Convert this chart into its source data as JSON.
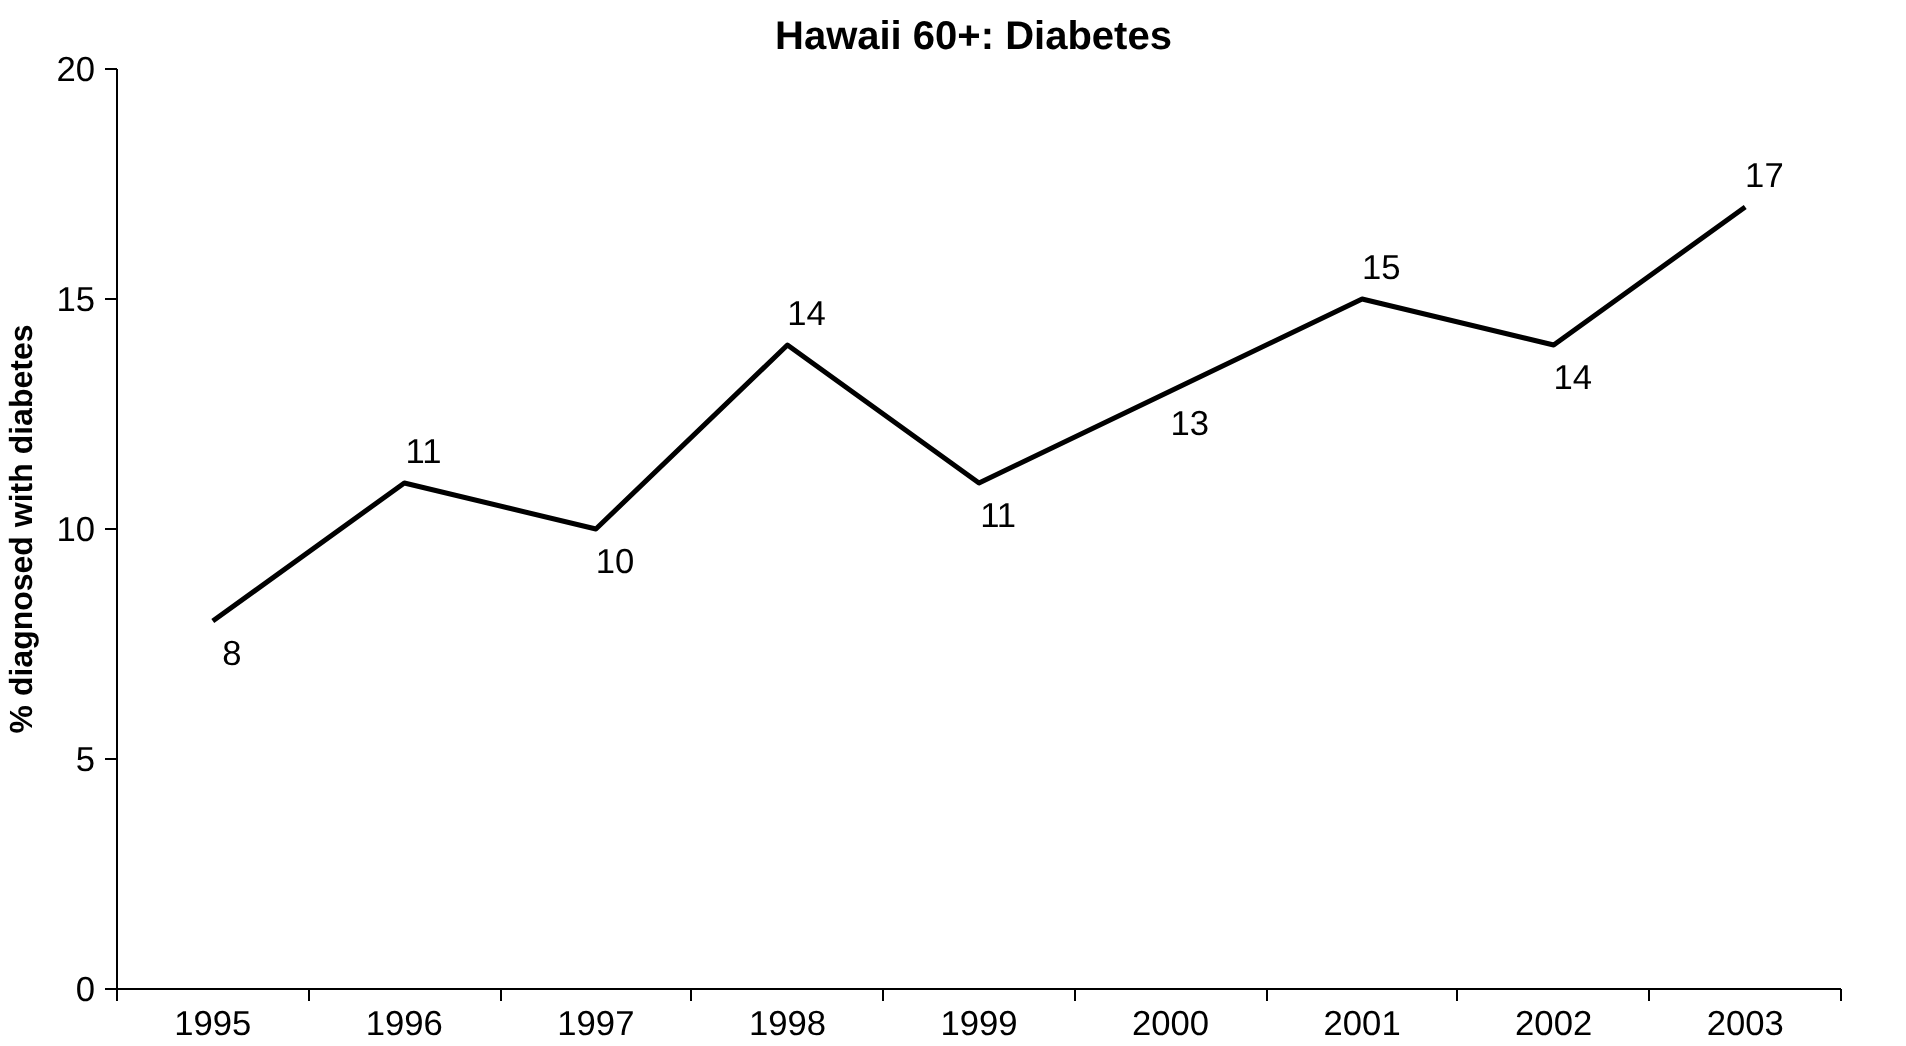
{
  "chart_data": {
    "type": "line",
    "title": "Hawaii 60+:  Diabetes",
    "ylabel": "% diagnosed with diabetes",
    "categories": [
      "1995",
      "1996",
      "1997",
      "1998",
      "1999",
      "2000",
      "2001",
      "2002",
      "2003"
    ],
    "series": [
      {
        "color": "#000000",
        "values": [
          8,
          11,
          10,
          14,
          11,
          13,
          15,
          14,
          17
        ]
      }
    ],
    "ylim": [
      0,
      20
    ],
    "yticks": [
      0,
      5,
      10,
      15,
      20
    ],
    "grid": false,
    "marker": "none",
    "line_style": "solid",
    "data_labels": true
  }
}
